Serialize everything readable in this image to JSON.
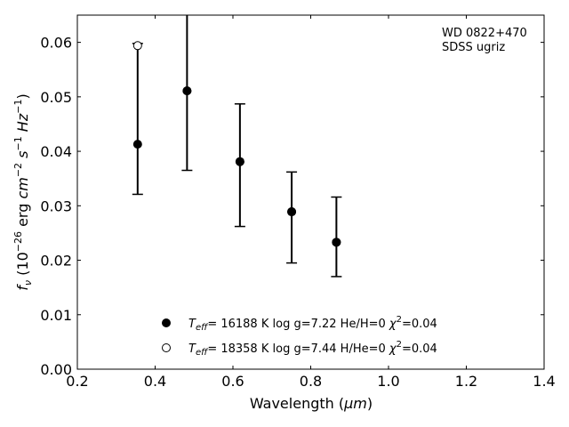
{
  "chart_data": {
    "type": "scatter",
    "annotation": [
      "WD 0822+470",
      "SDSS ugriz"
    ],
    "xlabel": "Wavelength (",
    "xlabel_unit": "μm",
    "xlabel_close": ")",
    "ylabel": "f",
    "ylabel_sub": "ν",
    "ylabel_units": [
      {
        "text": " (10"
      },
      {
        "text": "−26",
        "sup": true
      },
      {
        "text": " erg "
      },
      {
        "text": "cm",
        "italic": true
      },
      {
        "text": "−2",
        "sup": true
      },
      {
        "text": " "
      },
      {
        "text": "s",
        "italic": true
      },
      {
        "text": "−1",
        "sup": true
      },
      {
        "text": " "
      },
      {
        "text": "Hz",
        "italic": true
      },
      {
        "text": "−1",
        "sup": true
      },
      {
        "text": ")"
      }
    ],
    "xlim": [
      0.2,
      1.4
    ],
    "ylim": [
      0.0,
      0.065
    ],
    "xticks": [
      "0.2",
      "0.4",
      "0.6",
      "0.8",
      "1.0",
      "1.2",
      "1.4"
    ],
    "yticks": [
      "0.00",
      "0.01",
      "0.02",
      "0.03",
      "0.04",
      "0.05",
      "0.06"
    ],
    "observed": [
      {
        "x": 0.355,
        "low": 0.0321,
        "high": 0.0598
      },
      {
        "x": 0.482,
        "low": 0.0365,
        "high": 0.0655
      },
      {
        "x": 0.618,
        "low": 0.0262,
        "high": 0.0487
      },
      {
        "x": 0.751,
        "low": 0.0195,
        "high": 0.0362
      },
      {
        "x": 0.866,
        "low": 0.017,
        "high": 0.0316
      }
    ],
    "series": [
      {
        "marker": "filled",
        "legend": {
          "T": "T",
          "eff": "eff",
          "rest": "= 16188 K  log g=7.22  He/H=0  ",
          "chi": "χ",
          "two": "2",
          "chi_val": "=0.04"
        },
        "points": [
          {
            "x": 0.355,
            "y": 0.0413
          },
          {
            "x": 0.482,
            "y": 0.0511
          },
          {
            "x": 0.618,
            "y": 0.0381
          },
          {
            "x": 0.751,
            "y": 0.0289
          },
          {
            "x": 0.866,
            "y": 0.0233
          }
        ]
      },
      {
        "marker": "open",
        "legend": {
          "T": "T",
          "eff": "eff",
          "rest": "= 18358 K  log g=7.44  H/He=0  ",
          "chi": "χ",
          "two": "2",
          "chi_val": "=0.04"
        },
        "points": [
          {
            "x": 0.355,
            "y": 0.0594
          },
          {
            "x": 0.482,
            "y": 0.0511
          },
          {
            "x": 0.618,
            "y": 0.0381
          },
          {
            "x": 0.751,
            "y": 0.0289
          },
          {
            "x": 0.866,
            "y": 0.0233
          }
        ]
      }
    ],
    "grid": false,
    "legend_position": "bottom-center"
  }
}
